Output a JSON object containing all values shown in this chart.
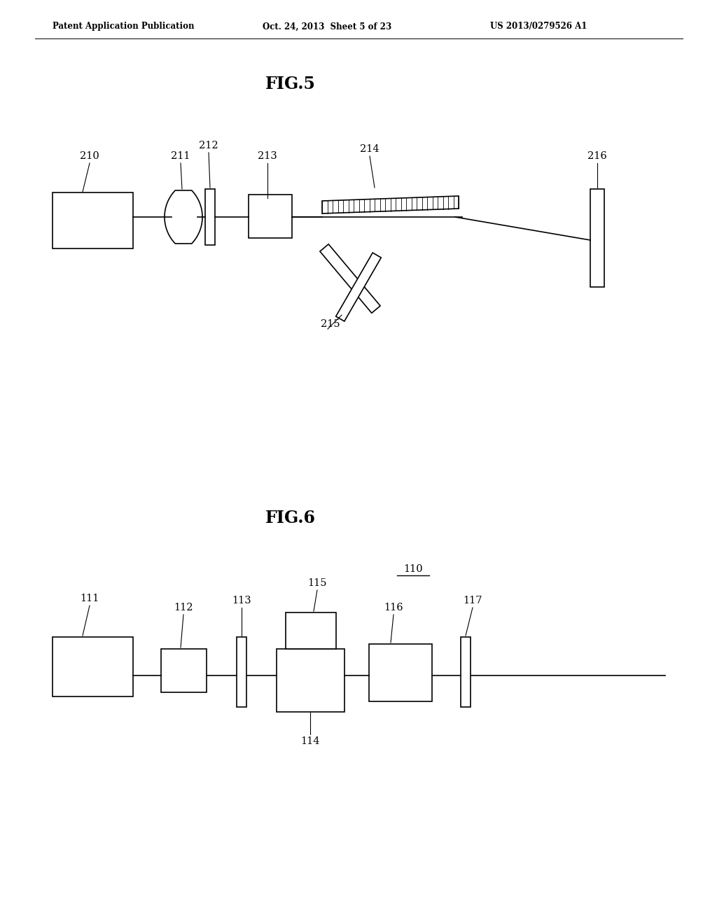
{
  "bg_color": "#ffffff",
  "fig_width": 10.24,
  "fig_height": 13.2,
  "header_text": "Patent Application Publication",
  "header_date": "Oct. 24, 2013  Sheet 5 of 23",
  "header_patent": "US 2013/0279526 A1",
  "fig5_title": "FIG.5",
  "fig6_title": "FIG.6",
  "lw": 1.2,
  "black": "#000000"
}
